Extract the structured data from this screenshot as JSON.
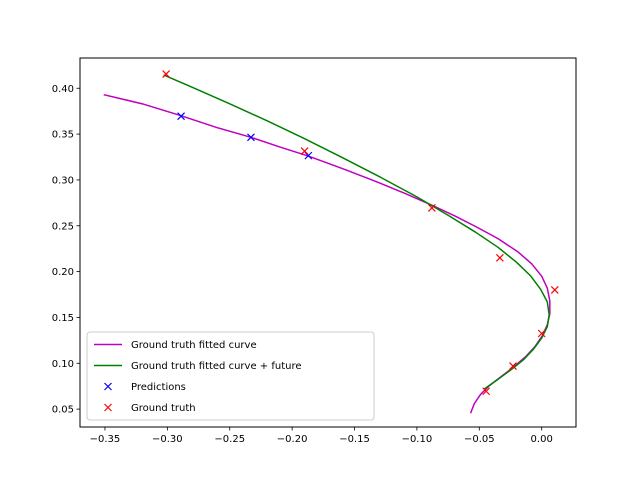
{
  "chart_data": {
    "type": "line",
    "title": "",
    "xlabel": "",
    "ylabel": "",
    "xlim": [
      -0.37,
      0.0275
    ],
    "ylim": [
      0.0305,
      0.433
    ],
    "xticks": [
      -0.35,
      -0.3,
      -0.25,
      -0.2,
      -0.15,
      -0.1,
      -0.05,
      0.0
    ],
    "xtick_labels": [
      "−0.35",
      "−0.30",
      "−0.25",
      "−0.20",
      "−0.15",
      "−0.10",
      "−0.05",
      "0.00"
    ],
    "yticks": [
      0.05,
      0.1,
      0.15,
      0.2,
      0.25,
      0.3,
      0.35,
      0.4
    ],
    "ytick_labels": [
      "0.05",
      "0.10",
      "0.15",
      "0.20",
      "0.25",
      "0.30",
      "0.35",
      "0.40"
    ],
    "grid": false,
    "legend_position": "lower-left",
    "series": [
      {
        "name": "Ground truth fitted curve",
        "kind": "line",
        "color": "#bf00bf",
        "points": [
          [
            -0.351,
            0.393
          ],
          [
            -0.32,
            0.383
          ],
          [
            -0.29,
            0.3705
          ],
          [
            -0.26,
            0.357
          ],
          [
            -0.233,
            0.3465
          ],
          [
            -0.21,
            0.336
          ],
          [
            -0.187,
            0.326
          ],
          [
            -0.16,
            0.3125
          ],
          [
            -0.135,
            0.2995
          ],
          [
            -0.11,
            0.2855
          ],
          [
            -0.088,
            0.2725
          ],
          [
            -0.07,
            0.261
          ],
          [
            -0.052,
            0.2485
          ],
          [
            -0.035,
            0.236
          ],
          [
            -0.019,
            0.2215
          ],
          [
            -0.008,
            0.2085
          ],
          [
            0.0,
            0.195
          ],
          [
            0.0045,
            0.182
          ],
          [
            0.0065,
            0.168
          ],
          [
            0.0065,
            0.154
          ],
          [
            0.0045,
            0.142
          ],
          [
            0.0005,
            0.13
          ],
          [
            -0.0055,
            0.118
          ],
          [
            -0.013,
            0.107
          ],
          [
            -0.022,
            0.0965
          ],
          [
            -0.032,
            0.086
          ],
          [
            -0.042,
            0.0755
          ],
          [
            -0.049,
            0.066
          ],
          [
            -0.054,
            0.056
          ],
          [
            -0.057,
            0.0455
          ]
        ]
      },
      {
        "name": "Ground truth fitted curve + future",
        "kind": "line",
        "color": "#008000",
        "points": [
          [
            -0.303,
            0.4145
          ],
          [
            -0.28,
            0.401
          ],
          [
            -0.25,
            0.383
          ],
          [
            -0.22,
            0.3645
          ],
          [
            -0.19,
            0.345
          ],
          [
            -0.16,
            0.3245
          ],
          [
            -0.13,
            0.3035
          ],
          [
            -0.1,
            0.2815
          ],
          [
            -0.075,
            0.2615
          ],
          [
            -0.053,
            0.243
          ],
          [
            -0.035,
            0.2265
          ],
          [
            -0.02,
            0.21
          ],
          [
            -0.009,
            0.1955
          ],
          [
            -0.001,
            0.181
          ],
          [
            0.0045,
            0.167
          ],
          [
            0.006,
            0.153
          ],
          [
            0.0045,
            0.14
          ],
          [
            0.0,
            0.1275
          ],
          [
            -0.0065,
            0.1155
          ],
          [
            -0.0145,
            0.104
          ],
          [
            -0.0245,
            0.093
          ],
          [
            -0.035,
            0.0825
          ],
          [
            -0.046,
            0.072
          ]
        ]
      },
      {
        "name": "Predictions",
        "kind": "marker",
        "marker": "x",
        "color": "#0000ff",
        "points": [
          [
            -0.289,
            0.3695
          ],
          [
            -0.233,
            0.3465
          ],
          [
            -0.187,
            0.3265
          ]
        ]
      },
      {
        "name": "Ground truth",
        "kind": "marker",
        "marker": "x",
        "color": "#ff0000",
        "points": [
          [
            -0.301,
            0.4155
          ],
          [
            -0.19,
            0.3315
          ],
          [
            -0.088,
            0.2695
          ],
          [
            -0.0335,
            0.215
          ],
          [
            0.0105,
            0.18
          ],
          [
            0.0,
            0.1325
          ],
          [
            -0.023,
            0.097
          ],
          [
            -0.0445,
            0.0695
          ]
        ]
      }
    ]
  }
}
